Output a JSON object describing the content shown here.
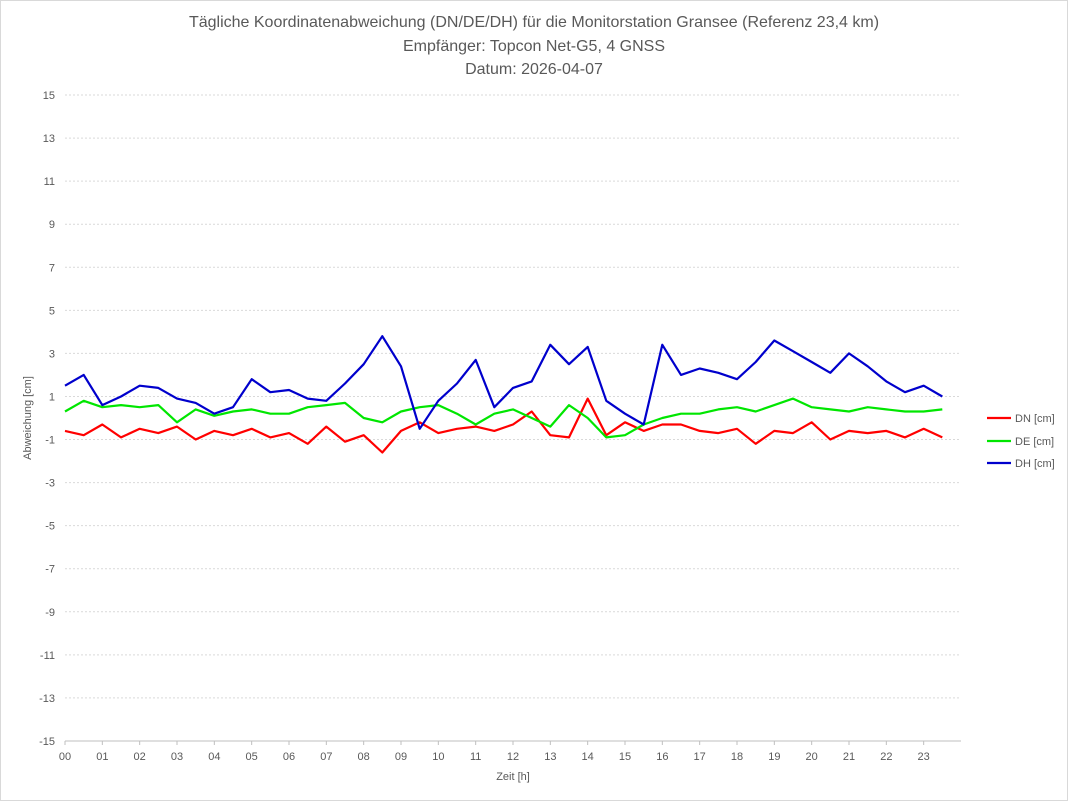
{
  "chart_data": {
    "type": "line",
    "title_lines": [
      "Tägliche Koordinatenabweichung (DN/DE/DH) für die Monitorstation Gransee (Referenz 23,4 km)",
      "Empfänger: Topcon Net-G5, 4 GNSS",
      "Datum: 2026-04-07"
    ],
    "xlabel": "Zeit [h]",
    "ylabel": "Abweichung [cm]",
    "xlim": [
      0,
      24
    ],
    "ylim": [
      -15,
      15
    ],
    "x_tick_labels": [
      "00",
      "01",
      "02",
      "03",
      "04",
      "05",
      "06",
      "07",
      "08",
      "09",
      "10",
      "11",
      "12",
      "13",
      "14",
      "15",
      "16",
      "17",
      "18",
      "19",
      "20",
      "21",
      "22",
      "23"
    ],
    "y_tick_labels": [
      "15",
      "13",
      "11",
      "9",
      "7",
      "5",
      "3",
      "1",
      "-1",
      "-3",
      "-5",
      "-7",
      "-9",
      "-11",
      "-13",
      "-15"
    ],
    "y_tick_values": [
      15,
      13,
      11,
      9,
      7,
      5,
      3,
      1,
      -1,
      -3,
      -5,
      -7,
      -9,
      -11,
      -13,
      -15
    ],
    "grid": true,
    "legend_position": "right",
    "sample_interval_h": 0.5,
    "series": [
      {
        "name": "DN [cm]",
        "color": "#ff0000",
        "values": [
          -0.6,
          -0.8,
          -0.3,
          -0.9,
          -0.5,
          -0.7,
          -0.4,
          -1.0,
          -0.6,
          -0.8,
          -0.5,
          -0.9,
          -0.7,
          -1.2,
          -0.4,
          -1.1,
          -0.8,
          -1.6,
          -0.6,
          -0.2,
          -0.7,
          -0.5,
          -0.4,
          -0.6,
          -0.3,
          0.3,
          -0.8,
          -0.9,
          0.9,
          -0.8,
          -0.2,
          -0.6,
          -0.3,
          -0.3,
          -0.6,
          -0.7,
          -0.5,
          -1.2,
          -0.6,
          -0.7,
          -0.2,
          -1.0,
          -0.6,
          -0.7,
          -0.6,
          -0.9,
          -0.5,
          -0.9
        ]
      },
      {
        "name": "DE [cm]",
        "color": "#00e600",
        "values": [
          0.3,
          0.8,
          0.5,
          0.6,
          0.5,
          0.6,
          -0.2,
          0.4,
          0.1,
          0.3,
          0.4,
          0.2,
          0.2,
          0.5,
          0.6,
          0.7,
          0.0,
          -0.2,
          0.3,
          0.5,
          0.6,
          0.2,
          -0.3,
          0.2,
          0.4,
          0.0,
          -0.4,
          0.6,
          0.0,
          -0.9,
          -0.8,
          -0.3,
          0.0,
          0.2,
          0.2,
          0.4,
          0.5,
          0.3,
          0.6,
          0.9,
          0.5,
          0.4,
          0.3,
          0.5,
          0.4,
          0.3,
          0.3,
          0.4
        ]
      },
      {
        "name": "DH [cm]",
        "color": "#0000cc",
        "values": [
          1.5,
          2.0,
          0.6,
          1.0,
          1.5,
          1.4,
          0.9,
          0.7,
          0.2,
          0.5,
          1.8,
          1.2,
          1.3,
          0.9,
          0.8,
          1.6,
          2.5,
          3.8,
          2.4,
          -0.5,
          0.8,
          1.6,
          2.7,
          0.5,
          1.4,
          1.7,
          3.4,
          2.5,
          3.3,
          0.8,
          0.2,
          -0.3,
          3.4,
          2.0,
          2.3,
          2.1,
          1.8,
          2.6,
          3.6,
          3.1,
          2.6,
          2.1,
          3.0,
          2.4,
          1.7,
          1.2,
          1.5,
          1.0
        ]
      }
    ]
  }
}
